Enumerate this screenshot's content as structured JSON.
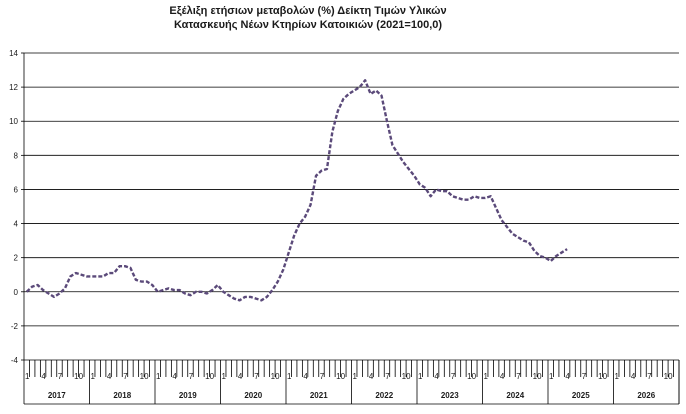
{
  "chart_data": {
    "type": "line",
    "title": "Εξέλιξη ετήσιων μεταβολών (%) Δείκτη Τιμών Υλικών",
    "subtitle": "Κατασκευής Νέων Κτηρίων Κατοικιών (2021=100,0)",
    "xlabel": "",
    "ylabel": "",
    "ylim": [
      -4,
      14
    ],
    "yticks": [
      -4,
      -2,
      0,
      2,
      4,
      6,
      8,
      10,
      12,
      14
    ],
    "grid": true,
    "legend": "none",
    "series_color": "#5b4a7a",
    "line_style": "dashed",
    "years": [
      "2017",
      "2018",
      "2019",
      "2020",
      "2021",
      "2022",
      "2023",
      "2024",
      "2025",
      "2026"
    ],
    "month_labels": [
      "1",
      "4",
      "7",
      "10"
    ],
    "series": [
      {
        "values": [
          0.0,
          0.3,
          0.4,
          0.1,
          -0.1,
          -0.3,
          -0.1,
          0.2,
          0.9,
          1.1,
          1.0,
          0.9,
          0.9,
          0.9,
          0.9,
          1.1,
          1.1,
          1.5,
          1.5,
          1.4,
          0.7,
          0.6,
          0.6,
          0.4,
          0.0,
          0.1,
          0.2,
          0.1,
          0.1,
          -0.1,
          -0.2,
          0.0,
          0.0,
          -0.1,
          0.1,
          0.4,
          0.0,
          -0.2,
          -0.4,
          -0.5,
          -0.3,
          -0.3,
          -0.4,
          -0.5,
          -0.3,
          0.1,
          0.6,
          1.3,
          2.3,
          3.3,
          4.0,
          4.4,
          5.1,
          6.8,
          7.1,
          7.2,
          9.4,
          10.6,
          11.3,
          11.6,
          11.8,
          12.0,
          12.4,
          11.6,
          11.8,
          11.5,
          10.0,
          8.6,
          8.1,
          7.6,
          7.2,
          6.8,
          6.3,
          6.1,
          5.6,
          6.0,
          5.9,
          5.9,
          5.6,
          5.5,
          5.4,
          5.4,
          5.6,
          5.5,
          5.5,
          5.6,
          4.9,
          4.2,
          3.8,
          3.4,
          3.2,
          3.0,
          2.9,
          2.4,
          2.1,
          2.0,
          1.8,
          2.1,
          2.3,
          2.5
        ]
      }
    ]
  }
}
